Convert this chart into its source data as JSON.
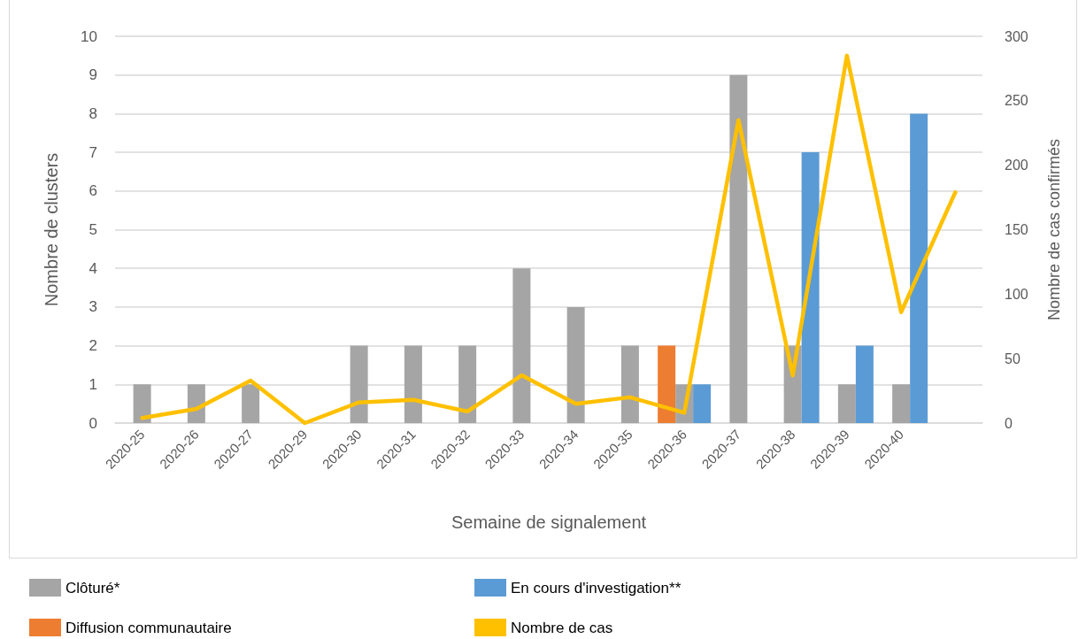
{
  "chart_data": {
    "type": "bar",
    "xlabel": "Semaine de signalement",
    "ylabel": "Nombre de clusters",
    "y2label": "Nombre de cas confirmés",
    "categories": [
      "2020-25",
      "2020-26",
      "2020-27",
      "2020-29",
      "2020-30",
      "2020-31",
      "2020-32",
      "2020-33",
      "2020-34",
      "2020-35",
      "2020-36",
      "2020-37",
      "2020-38",
      "2020-39",
      "2020-40",
      null
    ],
    "series": [
      {
        "name": "Diffusion communautaire",
        "color": "#ed7d31",
        "values": [
          null,
          null,
          null,
          null,
          null,
          null,
          null,
          null,
          null,
          null,
          2,
          null,
          null,
          null,
          null,
          null
        ]
      },
      {
        "name": "Clôturé*",
        "color": "#a5a5a5",
        "values": [
          1,
          1,
          1,
          null,
          2,
          2,
          2,
          4,
          3,
          2,
          1,
          9,
          2,
          1,
          1,
          null
        ]
      },
      {
        "name": "En cours d'investigation**",
        "color": "#5b9bd5",
        "values": [
          null,
          null,
          null,
          null,
          null,
          null,
          null,
          null,
          null,
          null,
          1,
          null,
          7,
          2,
          8,
          null
        ]
      },
      {
        "name": "Nombre de cas",
        "type": "line",
        "axis": "y2",
        "color": "#ffc000",
        "values": [
          4,
          11,
          33,
          0,
          16,
          18,
          9,
          37,
          15,
          20,
          8,
          235,
          37,
          285,
          86,
          179
        ]
      }
    ],
    "ylim": [
      0,
      10
    ],
    "yticks": [
      0,
      1,
      2,
      3,
      4,
      5,
      6,
      7,
      8,
      9,
      10
    ],
    "y2lim": [
      0,
      300
    ],
    "y2ticks": [
      0,
      50,
      100,
      150,
      200,
      250,
      300
    ],
    "grid": "y",
    "legend": "bottom",
    "marker": "none",
    "line_style": "solid"
  }
}
